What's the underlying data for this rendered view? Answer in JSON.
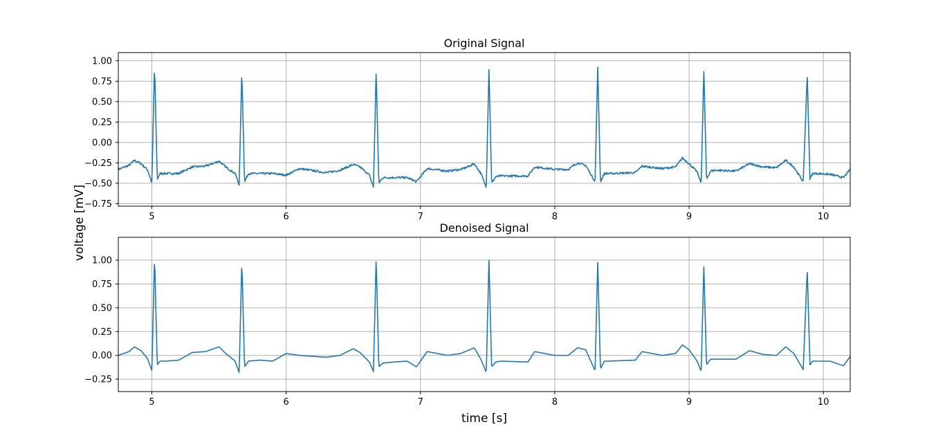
{
  "figure": {
    "ylabel": "voltage [mV]",
    "xlabel": "time [s]"
  },
  "colors": {
    "trace": "#1f77b4",
    "grid": "#b0b0b0"
  },
  "chart_data": [
    {
      "type": "line",
      "title": "Original Signal",
      "xlim": [
        4.75,
        10.2
      ],
      "ylim": [
        -0.78,
        1.1
      ],
      "grid": true,
      "x_ticks": [
        "5",
        "6",
        "7",
        "8",
        "9",
        "10"
      ],
      "y_ticks": [
        "1.00",
        "0.75",
        "0.50",
        "0.25",
        "0.00",
        "−0.25",
        "−0.50",
        "−0.75"
      ],
      "beat_times": [
        5.02,
        5.67,
        6.67,
        7.51,
        8.32,
        9.11,
        9.88
      ],
      "peak_values": [
        0.95,
        0.88,
        0.89,
        0.9,
        0.93,
        0.87,
        0.84
      ],
      "baseline": -0.39,
      "series": [
        {
          "x": [
            4.75,
            4.83,
            4.87,
            4.92,
            4.97,
            5.0,
            5.02,
            5.04,
            5.06,
            5.1,
            5.2,
            5.3,
            5.4,
            5.5,
            5.55,
            5.62,
            5.65,
            5.67,
            5.69,
            5.72,
            5.8,
            5.9,
            6.0,
            6.1,
            6.3,
            6.4,
            6.5,
            6.55,
            6.62,
            6.65,
            6.67,
            6.69,
            6.72,
            6.8,
            6.9,
            6.97,
            7.05,
            7.2,
            7.3,
            7.35,
            7.4,
            7.45,
            7.49,
            7.51,
            7.53,
            7.56,
            7.6,
            7.8,
            7.85,
            8.0,
            8.1,
            8.17,
            8.23,
            8.3,
            8.32,
            8.34,
            8.37,
            8.4,
            8.6,
            8.65,
            8.8,
            8.9,
            8.95,
            9.0,
            9.06,
            9.09,
            9.11,
            9.13,
            9.16,
            9.2,
            9.35,
            9.45,
            9.55,
            9.65,
            9.72,
            9.78,
            9.85,
            9.88,
            9.9,
            9.92,
            9.95,
            10.05,
            10.15,
            10.2
          ],
          "y": [
            -0.33,
            -0.28,
            -0.22,
            -0.26,
            -0.34,
            -0.5,
            0.95,
            -0.45,
            -0.38,
            -0.38,
            -0.38,
            -0.3,
            -0.29,
            -0.23,
            -0.3,
            -0.38,
            -0.52,
            0.88,
            -0.48,
            -0.38,
            -0.38,
            -0.38,
            -0.4,
            -0.32,
            -0.37,
            -0.34,
            -0.27,
            -0.3,
            -0.4,
            -0.55,
            0.89,
            -0.5,
            -0.43,
            -0.43,
            -0.43,
            -0.48,
            -0.32,
            -0.35,
            -0.33,
            -0.3,
            -0.26,
            -0.38,
            -0.55,
            0.9,
            -0.5,
            -0.42,
            -0.41,
            -0.41,
            -0.3,
            -0.33,
            -0.33,
            -0.25,
            -0.28,
            -0.48,
            0.93,
            -0.48,
            -0.38,
            -0.38,
            -0.37,
            -0.29,
            -0.32,
            -0.3,
            -0.19,
            -0.26,
            -0.36,
            -0.5,
            0.87,
            -0.45,
            -0.35,
            -0.34,
            -0.35,
            -0.26,
            -0.3,
            -0.31,
            -0.22,
            -0.3,
            -0.48,
            0.84,
            -0.45,
            -0.38,
            -0.38,
            -0.39,
            -0.43,
            -0.33
          ]
        }
      ]
    },
    {
      "type": "line",
      "title": "Denoised Signal",
      "xlim": [
        4.75,
        10.2
      ],
      "ylim": [
        -0.38,
        1.24
      ],
      "grid": true,
      "x_ticks": [
        "5",
        "6",
        "7",
        "8",
        "9",
        "10"
      ],
      "y_ticks": [
        "1.00",
        "0.75",
        "0.50",
        "0.25",
        "0.00",
        "−0.25"
      ],
      "beat_times": [
        5.02,
        5.67,
        6.67,
        7.51,
        8.32,
        9.11,
        9.88
      ],
      "peak_values": [
        1.04,
        0.99,
        1.03,
        1.0,
        0.99,
        0.93,
        0.91
      ],
      "baseline": -0.05,
      "series": [
        {
          "x": [
            4.75,
            4.83,
            4.87,
            4.92,
            4.97,
            5.0,
            5.02,
            5.04,
            5.06,
            5.1,
            5.2,
            5.3,
            5.4,
            5.5,
            5.55,
            5.62,
            5.65,
            5.67,
            5.69,
            5.72,
            5.8,
            5.9,
            6.0,
            6.1,
            6.3,
            6.4,
            6.5,
            6.55,
            6.62,
            6.65,
            6.67,
            6.69,
            6.72,
            6.8,
            6.9,
            6.97,
            7.05,
            7.2,
            7.3,
            7.35,
            7.4,
            7.45,
            7.49,
            7.51,
            7.53,
            7.56,
            7.6,
            7.8,
            7.85,
            8.0,
            8.1,
            8.17,
            8.23,
            8.3,
            8.32,
            8.34,
            8.37,
            8.4,
            8.6,
            8.65,
            8.8,
            8.9,
            8.95,
            9.0,
            9.06,
            9.09,
            9.11,
            9.13,
            9.16,
            9.2,
            9.35,
            9.45,
            9.55,
            9.65,
            9.72,
            9.78,
            9.85,
            9.88,
            9.9,
            9.92,
            9.95,
            10.05,
            10.15,
            10.2
          ],
          "y": [
            0.0,
            0.04,
            0.09,
            0.05,
            -0.04,
            -0.16,
            1.04,
            -0.1,
            -0.06,
            -0.06,
            -0.05,
            0.03,
            0.04,
            0.09,
            0.02,
            -0.06,
            -0.18,
            0.99,
            -0.12,
            -0.06,
            -0.05,
            -0.06,
            0.02,
            0.0,
            -0.02,
            0.0,
            0.07,
            0.03,
            -0.07,
            -0.17,
            1.03,
            -0.12,
            -0.08,
            -0.07,
            -0.06,
            -0.12,
            0.04,
            0.0,
            0.02,
            0.05,
            0.08,
            -0.04,
            -0.18,
            1.0,
            -0.12,
            -0.07,
            -0.06,
            -0.07,
            0.04,
            0.0,
            0.0,
            0.08,
            0.06,
            -0.16,
            0.99,
            -0.14,
            -0.06,
            -0.06,
            -0.05,
            0.04,
            0.0,
            0.02,
            0.11,
            0.06,
            -0.06,
            -0.17,
            0.93,
            -0.1,
            -0.04,
            -0.04,
            -0.04,
            0.05,
            0.01,
            0.0,
            0.09,
            0.02,
            -0.15,
            0.91,
            -0.1,
            -0.06,
            -0.06,
            -0.06,
            -0.11,
            -0.01
          ]
        }
      ]
    }
  ]
}
